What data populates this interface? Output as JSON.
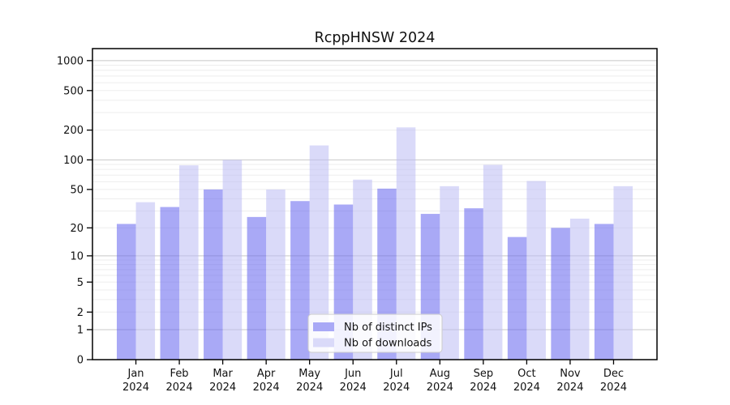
{
  "chart_data": {
    "type": "bar",
    "title": "RcppHNSW 2024",
    "y_scale": "log10(value+1)",
    "categories": [
      "Jan",
      "Feb",
      "Mar",
      "Apr",
      "May",
      "Jun",
      "Jul",
      "Aug",
      "Sep",
      "Oct",
      "Nov",
      "Dec"
    ],
    "x_tick_second_line": "2024",
    "series": [
      {
        "name": "Nb of distinct IPs",
        "color": "#a9a9f6",
        "fill": "rgba(99,99,239,0.55)",
        "values": [
          22,
          33,
          50,
          26,
          38,
          35,
          51,
          28,
          32,
          16,
          20,
          22
        ]
      },
      {
        "name": "Nb of downloads",
        "color": "#dadaf9",
        "fill": "rgba(188,188,244,0.55)",
        "values": [
          37,
          88,
          100,
          50,
          140,
          63,
          213,
          54,
          89,
          61,
          25,
          54
        ]
      }
    ],
    "y_ticks": [
      0,
      1,
      2,
      5,
      10,
      20,
      50,
      100,
      200,
      500,
      1000
    ],
    "ylim": [
      0,
      1320
    ],
    "grid": {
      "major_at": [
        1,
        10,
        100,
        1000
      ],
      "major_color": "#c8c8c8",
      "minor_color": "#ededed"
    },
    "axis_color": "#000000",
    "legend": {
      "position": "bottom-center",
      "border_color": "#cccccc",
      "background": "rgba(255,255,255,0.85)"
    }
  }
}
